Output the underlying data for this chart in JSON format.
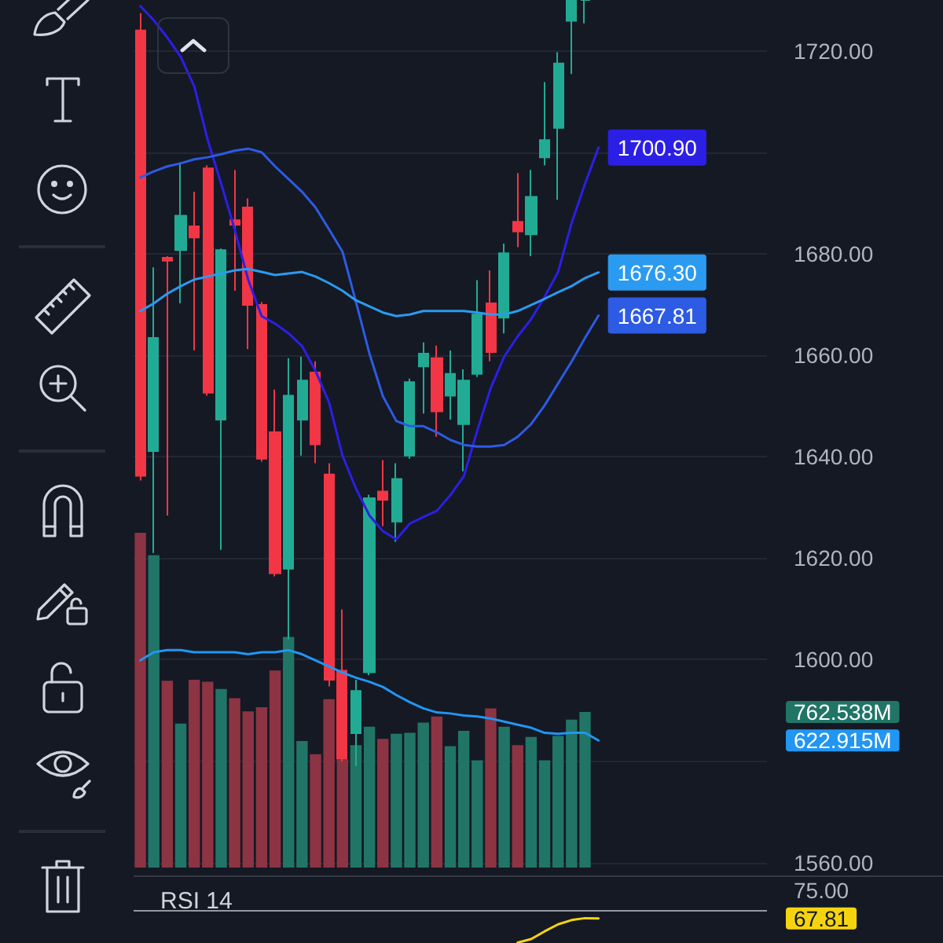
{
  "chart_data": [
    {
      "type": "candlestick",
      "categories": [
        null,
        null,
        null,
        null,
        null,
        null,
        null,
        null,
        null,
        null,
        null,
        null,
        null,
        null,
        null,
        null,
        null,
        null,
        null,
        null,
        null,
        null,
        null,
        null,
        null,
        null,
        null,
        null,
        null,
        null,
        null,
        null,
        null,
        null,
        null,
        null,
        null,
        null,
        null,
        null,
        null,
        null,
        null,
        null,
        null,
        null,
        null
      ],
      "ohlc": [
        [
          1724.0,
          1727.4,
          1635.3,
          1636.2
        ],
        [
          1641.1,
          1677.3,
          1621.0,
          1663.4
        ],
        [
          1679.2,
          1679.5,
          1628.4,
          1678.6
        ],
        [
          1680.7,
          1698.0,
          1670.2,
          1687.5
        ],
        [
          1685.4,
          1692.2,
          1660.9,
          1683.2
        ],
        [
          1696.8,
          1697.4,
          1652.0,
          1652.6
        ],
        [
          1647.3,
          1681.0,
          1621.6,
          1680.7
        ],
        [
          1686.6,
          1696.5,
          1672.7,
          1685.7
        ],
        [
          1689.1,
          1690.9,
          1661.2,
          1669.9
        ],
        [
          1669.9,
          1670.5,
          1639.0,
          1639.6
        ],
        [
          1644.8,
          1653.2,
          1616.4,
          1617.0
        ],
        [
          1617.9,
          1659.4,
          1604.0,
          1652.0
        ],
        [
          1647.3,
          1659.7,
          1640.2,
          1655.0
        ],
        [
          1656.6,
          1658.8,
          1638.7,
          1642.4
        ],
        [
          1636.5,
          1638.7,
          1594.7,
          1596.0
        ],
        [
          1597.8,
          1609.9,
          1579.9,
          1580.5
        ],
        [
          1585.5,
          1596.0,
          1579.0,
          1593.8
        ],
        [
          1597.5,
          1632.5,
          1596.9,
          1631.8
        ],
        [
          1633.1,
          1639.3,
          1626.3,
          1631.5
        ],
        [
          1627.2,
          1638.7,
          1623.2,
          1635.6
        ],
        [
          1640.2,
          1655.4,
          1639.6,
          1654.7
        ],
        [
          1657.8,
          1662.5,
          1648.5,
          1660.3
        ],
        [
          1659.4,
          1661.9,
          1643.9,
          1648.9
        ],
        [
          1652.0,
          1660.9,
          1647.3,
          1656.3
        ],
        [
          1646.4,
          1657.2,
          1637.1,
          1655.0
        ],
        [
          1656.3,
          1674.8,
          1655.7,
          1668.0
        ],
        [
          1670.2,
          1676.7,
          1658.8,
          1660.6
        ],
        [
          1667.4,
          1682.0,
          1664.3,
          1680.1
        ],
        [
          1686.3,
          1695.9,
          1681.3,
          1684.4
        ],
        [
          1683.8,
          1696.5,
          1679.5,
          1691.2
        ],
        [
          1699.0,
          1713.8,
          1697.4,
          1702.4
        ],
        [
          1704.8,
          1719.7,
          1690.6,
          1717.5
        ],
        [
          1725.9,
          1730,
          1715.4,
          1730
        ],
        [
          1730,
          1730,
          1725.4,
          1730
        ],
        null,
        null,
        null,
        null,
        null,
        null,
        null,
        null,
        null,
        null,
        null,
        null,
        null
      ],
      "colors": [
        "#f23645",
        "#22ab94",
        "#f23645",
        "#22ab94",
        "#f23645",
        "#f23645",
        "#22ab94",
        "#f23645",
        "#f23645",
        "#f23645",
        "#f23645",
        "#22ab94",
        "#22ab94",
        "#f23645",
        "#f23645",
        "#f23645",
        "#22ab94",
        "#22ab94",
        "#f23645",
        "#22ab94",
        "#22ab94",
        "#22ab94",
        "#f23645",
        "#22ab94",
        "#22ab94",
        "#22ab94",
        "#f23645",
        "#22ab94",
        "#f23645",
        "#22ab94",
        "#22ab94",
        "#22ab94",
        "#22ab94",
        "#22ab94",
        null,
        null,
        null,
        null,
        null,
        null,
        null,
        null,
        null,
        null,
        null,
        null,
        null
      ],
      "series": [
        {
          "type": "line",
          "color": "#2c1fe5",
          "values": [
            1728.8,
            1726.0,
            1722.6,
            1718.8,
            1713.0,
            1702.4,
            1693.8,
            1684.8,
            1674.9,
            1667.7,
            1666.2,
            1664.3,
            1661.8,
            1656.9,
            1650.7,
            1640.2,
            1633.7,
            1628.4,
            1625.3,
            1623.7,
            1626.8,
            1628.1,
            1629.3,
            1632.4,
            1636.1,
            1645.1,
            1653.5,
            1659.7,
            1663.7,
            1667.1,
            1671.5,
            1676.4,
            1686.0,
            1693.8,
            1700.9,
            null,
            null,
            null,
            null,
            null,
            null,
            null,
            null,
            null,
            null,
            null,
            null
          ],
          "value_labels": [
            null,
            null,
            null,
            null,
            null,
            null,
            null,
            null,
            null,
            null,
            null,
            null,
            null,
            null,
            null,
            null,
            null,
            null,
            null,
            null,
            null,
            null,
            null,
            null,
            null,
            null,
            null,
            null,
            null,
            null,
            null,
            null,
            null,
            null,
            "1700.90",
            null,
            null,
            null,
            null,
            null,
            null,
            null,
            null,
            null,
            null,
            null,
            null
          ]
        },
        {
          "type": "line",
          "color": "#2d5be3",
          "values": [
            1695.0,
            1696.2,
            1697.2,
            1697.8,
            1698.6,
            1699.0,
            1699.6,
            1700.3,
            1700.7,
            1700.0,
            1697.2,
            1694.7,
            1692.2,
            1689.1,
            1684.8,
            1680.4,
            1670.5,
            1660.3,
            1651.9,
            1647.0,
            1646.0,
            1646.0,
            1644.8,
            1643.3,
            1642.3,
            1642.0,
            1642.0,
            1642.3,
            1643.9,
            1646.4,
            1650.1,
            1654.4,
            1658.7,
            1663.4,
            1667.81,
            null,
            null,
            null,
            null,
            null,
            null,
            null,
            null,
            null,
            null,
            null,
            null
          ],
          "value_labels": [
            null,
            null,
            null,
            null,
            null,
            null,
            null,
            null,
            null,
            null,
            null,
            null,
            null,
            null,
            null,
            null,
            null,
            null,
            null,
            null,
            null,
            null,
            null,
            null,
            null,
            null,
            null,
            null,
            null,
            null,
            null,
            null,
            null,
            null,
            "1667.81",
            null,
            null,
            null,
            null,
            null,
            null,
            null,
            null,
            null,
            null,
            null,
            null
          ]
        },
        {
          "type": "line",
          "color": "#2a9bf0",
          "values": [
            1668.7,
            1670.2,
            1672.1,
            1673.6,
            1674.9,
            1675.5,
            1676.1,
            1676.7,
            1677.0,
            1676.4,
            1675.8,
            1676.1,
            1676.4,
            1675.5,
            1674.2,
            1672.7,
            1670.8,
            1669.6,
            1668.4,
            1667.7,
            1668.0,
            1668.7,
            1668.7,
            1668.7,
            1668.7,
            1668.4,
            1668.0,
            1668.0,
            1668.7,
            1669.9,
            1671.1,
            1672.4,
            1673.6,
            1675.2,
            1676.3,
            null,
            null,
            null,
            null,
            null,
            null,
            null,
            null,
            null,
            null,
            null,
            null
          ],
          "value_labels": [
            null,
            null,
            null,
            null,
            null,
            null,
            null,
            null,
            null,
            null,
            null,
            null,
            null,
            null,
            null,
            null,
            null,
            null,
            null,
            null,
            null,
            null,
            null,
            null,
            null,
            null,
            null,
            null,
            null,
            null,
            null,
            null,
            null,
            null,
            "1676.30",
            null,
            null,
            null,
            null,
            null,
            null,
            null,
            null,
            null,
            null,
            null,
            null
          ]
        },
        {
          "type": "bar",
          "axis": "y2",
          "colors": [
            "#8c3443",
            "#217567",
            "#8c3443",
            "#217567",
            "#8c3443",
            "#8c3443",
            "#217567",
            "#8c3443",
            "#8c3443",
            "#8c3443",
            "#8c3443",
            "#217567",
            "#217567",
            "#8c3443",
            "#8c3443",
            "#8c3443",
            "#217567",
            "#217567",
            "#8c3443",
            "#217567",
            "#217567",
            "#217567",
            "#8c3443",
            "#217567",
            "#217567",
            "#217567",
            "#8c3443",
            "#217567",
            "#8c3443",
            "#217567",
            "#217567",
            "#217567",
            "#217567",
            "#217567",
            null,
            null,
            null,
            null,
            null,
            null,
            null,
            null,
            null,
            null,
            null,
            null,
            null
          ],
          "values": [
            1640,
            1530,
            915,
            705,
            920,
            910,
            875,
            830,
            765,
            785,
            965,
            1130,
            620,
            555,
            825,
            530,
            600,
            690,
            630,
            655,
            660,
            710,
            740,
            595,
            670,
            525,
            780,
            690,
            600,
            640,
            525,
            645,
            725,
            762.538,
            null,
            null,
            null,
            null,
            null,
            null,
            null,
            null,
            null,
            null,
            null,
            null,
            null
          ]
        },
        {
          "type": "line",
          "axis": "y2",
          "color": "#2196f3",
          "values": [
            1015,
            1055,
            1065,
            1065,
            1055,
            1055,
            1055,
            1055,
            1045,
            1055,
            1055,
            1065,
            1045,
            1015,
            985,
            955,
            930,
            910,
            885,
            845,
            810,
            780,
            760,
            755,
            745,
            740,
            730,
            715,
            700,
            685,
            660,
            655,
            660,
            660,
            622.915,
            null,
            null,
            null,
            null,
            null,
            null,
            null,
            null,
            null,
            null,
            null,
            null
          ]
        }
      ],
      "ylim": [
        1559,
        1730
      ],
      "yticks": [
        {
          "value": 1560,
          "label": "1560.00"
        },
        {
          "value": 1580,
          "label": null
        },
        {
          "value": 1600,
          "label": "1600.00"
        },
        {
          "value": 1620,
          "label": "1620.00"
        },
        {
          "value": 1640,
          "label": "1640.00"
        },
        {
          "value": 1660,
          "label": "1660.00"
        },
        {
          "value": 1680,
          "label": "1680.00"
        },
        {
          "value": 1700,
          "label": null
        },
        {
          "value": 1720,
          "label": "1720.00"
        }
      ],
      "y2lim": [
        0,
        4250
      ],
      "y2ticks": [
        {
          "value": 622.915,
          "label": "622.915M"
        },
        {
          "value": 762.538,
          "label": "762.538M"
        }
      ],
      "grid": "y",
      "marker": "none",
      "tick_labels": "y"
    },
    {
      "type": "line",
      "title": "RSI 14",
      "categories": [
        null,
        null,
        null,
        null,
        null,
        null,
        null,
        null,
        null,
        null,
        null,
        null,
        null,
        null,
        null,
        null,
        null,
        null,
        null,
        null,
        null,
        null,
        null,
        null,
        null,
        null,
        null,
        null,
        null,
        null,
        null,
        null,
        null,
        null,
        null,
        null,
        null,
        null,
        null,
        null,
        null,
        null,
        null,
        null,
        null,
        null,
        null
      ],
      "series": [
        {
          "color": "#f5d40f",
          "values": [
            null,
            null,
            null,
            null,
            null,
            null,
            null,
            null,
            null,
            null,
            null,
            null,
            null,
            null,
            null,
            null,
            null,
            null,
            null,
            null,
            null,
            null,
            null,
            null,
            null,
            null,
            null,
            null,
            61.6,
            62.5,
            64.5,
            66.3,
            67.4,
            67.9,
            67.81,
            null,
            null,
            null,
            null,
            null,
            null,
            null,
            null,
            null,
            null,
            null,
            null
          ]
        }
      ],
      "ylim": [
        61.5,
        78.5
      ],
      "yticks": [
        {
          "value": 67.81,
          "label": "67.81"
        },
        {
          "value": 75,
          "label": "75.00"
        }
      ],
      "ref_lines": [
        {
          "axis": "y",
          "value": 70,
          "color": "#9598a1"
        }
      ],
      "marker": "none",
      "tick_labels": "y"
    }
  ]
}
